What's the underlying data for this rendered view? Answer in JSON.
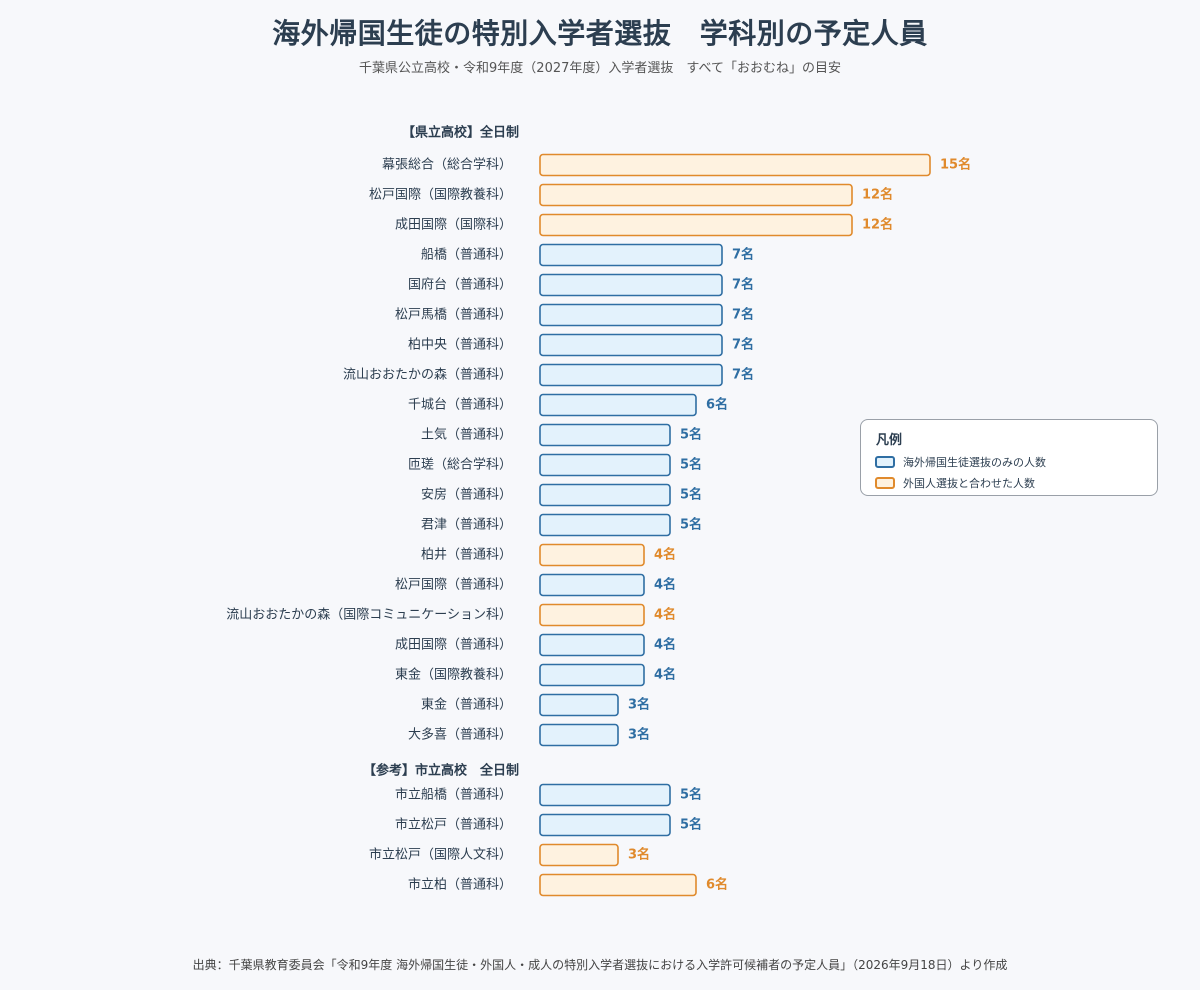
{
  "title": "海外帰国生徒の特別入学者選抜　学科別の予定人員",
  "subtitle": "千葉県公立高校・令和9年度（2027年度）入学者選抜　すべて「おおむね」の目安",
  "source": "出典：千葉県教育委員会「令和9年度 海外帰国生徒・外国人・成人の特別入学者選抜における入学許可候補者の予定人員」（2026年9月18日）より作成",
  "legend": {
    "title": "凡例",
    "items": [
      {
        "label": "海外帰国生徒選抜のみの人数",
        "color": "#2f6ea3"
      },
      {
        "label": "外国人選抜と合わせた人数",
        "color": "#e08a2c"
      }
    ]
  },
  "colors": {
    "blue_stroke": "#2f6ea3",
    "blue_fill": "#e3f2fc",
    "orange_stroke": "#e08a2c",
    "orange_fill": "#fef2e0"
  },
  "chart_data": {
    "type": "bar",
    "orientation": "horizontal",
    "value_suffix": "名",
    "groups": [
      {
        "heading": "【県立高校】全日制",
        "bars": [
          {
            "label": "幕張総合（総合学科）",
            "value": 15,
            "kind": "combined"
          },
          {
            "label": "松戸国際（国際教養科）",
            "value": 12,
            "kind": "combined"
          },
          {
            "label": "成田国際（国際科）",
            "value": 12,
            "kind": "combined"
          },
          {
            "label": "船橋（普通科）",
            "value": 7,
            "kind": "returnee"
          },
          {
            "label": "国府台（普通科）",
            "value": 7,
            "kind": "returnee"
          },
          {
            "label": "松戸馬橋（普通科）",
            "value": 7,
            "kind": "returnee"
          },
          {
            "label": "柏中央（普通科）",
            "value": 7,
            "kind": "returnee"
          },
          {
            "label": "流山おおたかの森（普通科）",
            "value": 7,
            "kind": "returnee"
          },
          {
            "label": "千城台（普通科）",
            "value": 6,
            "kind": "returnee"
          },
          {
            "label": "土気（普通科）",
            "value": 5,
            "kind": "returnee"
          },
          {
            "label": "匝瑳（総合学科）",
            "value": 5,
            "kind": "returnee"
          },
          {
            "label": "安房（普通科）",
            "value": 5,
            "kind": "returnee"
          },
          {
            "label": "君津（普通科）",
            "value": 5,
            "kind": "returnee"
          },
          {
            "label": "柏井（普通科）",
            "value": 4,
            "kind": "combined"
          },
          {
            "label": "松戸国際（普通科）",
            "value": 4,
            "kind": "returnee"
          },
          {
            "label": "流山おおたかの森（国際コミュニケーション科）",
            "value": 4,
            "kind": "combined"
          },
          {
            "label": "成田国際（普通科）",
            "value": 4,
            "kind": "returnee"
          },
          {
            "label": "東金（国際教養科）",
            "value": 4,
            "kind": "returnee"
          },
          {
            "label": "東金（普通科）",
            "value": 3,
            "kind": "returnee"
          },
          {
            "label": "大多喜（普通科）",
            "value": 3,
            "kind": "returnee"
          }
        ]
      },
      {
        "heading": "【参考】市立高校　全日制",
        "bars": [
          {
            "label": "市立船橋（普通科）",
            "value": 5,
            "kind": "returnee"
          },
          {
            "label": "市立松戸（普通科）",
            "value": 5,
            "kind": "returnee"
          },
          {
            "label": "市立松戸（国際人文科）",
            "value": 3,
            "kind": "combined"
          },
          {
            "label": "市立柏（普通科）",
            "value": 6,
            "kind": "combined"
          }
        ]
      }
    ]
  }
}
